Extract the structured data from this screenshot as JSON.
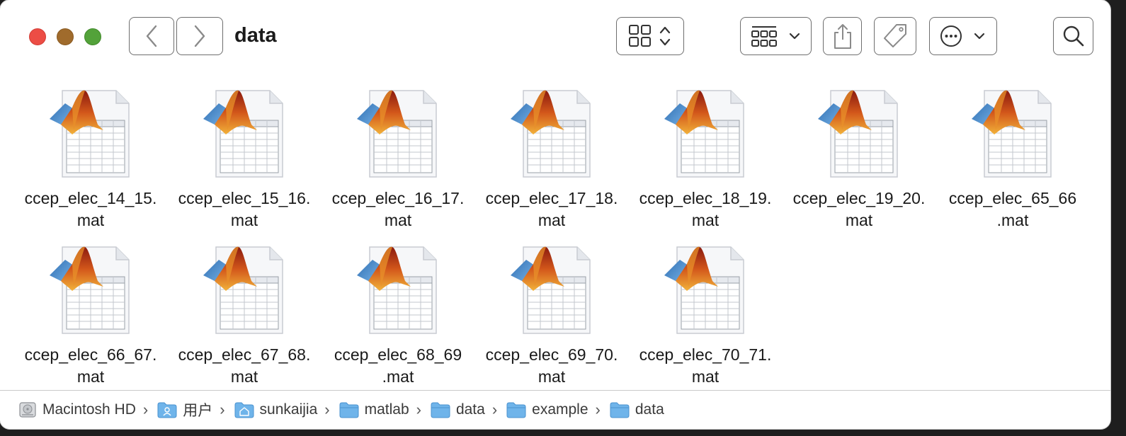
{
  "window": {
    "title": "data"
  },
  "toolbar": {
    "back": "back",
    "forward": "forward",
    "view_mode": "icon-view",
    "group": "group-by",
    "share": "share",
    "tags": "tags",
    "more": "more-actions",
    "search": "search"
  },
  "files": [
    {
      "line1": "ccep_elec_14_15.",
      "line2": "mat"
    },
    {
      "line1": "ccep_elec_15_16.",
      "line2": "mat"
    },
    {
      "line1": "ccep_elec_16_17.",
      "line2": "mat"
    },
    {
      "line1": "ccep_elec_17_18.",
      "line2": "mat"
    },
    {
      "line1": "ccep_elec_18_19.",
      "line2": "mat"
    },
    {
      "line1": "ccep_elec_19_20.",
      "line2": "mat"
    },
    {
      "line1": "ccep_elec_65_66",
      "line2": ".mat"
    },
    {
      "line1": "ccep_elec_66_67.",
      "line2": "mat"
    },
    {
      "line1": "ccep_elec_67_68.",
      "line2": "mat"
    },
    {
      "line1": "ccep_elec_68_69",
      "line2": ".mat"
    },
    {
      "line1": "ccep_elec_69_70.",
      "line2": "mat"
    },
    {
      "line1": "ccep_elec_70_71.",
      "line2": "mat"
    }
  ],
  "pathbar": {
    "crumbs": [
      {
        "label": "Macintosh HD",
        "icon": "hard-drive-icon"
      },
      {
        "label": "用户",
        "icon": "users-folder-icon"
      },
      {
        "label": "sunkaijia",
        "icon": "home-folder-icon"
      },
      {
        "label": "matlab",
        "icon": "folder-icon"
      },
      {
        "label": "data",
        "icon": "folder-icon"
      },
      {
        "label": "example",
        "icon": "folder-icon"
      },
      {
        "label": "data",
        "icon": "folder-icon"
      }
    ]
  },
  "colors": {
    "close": "#ec4d45",
    "minimize": "#a06b2c",
    "zoom": "#53a23a",
    "folder_blue": "#5aa9e6"
  }
}
